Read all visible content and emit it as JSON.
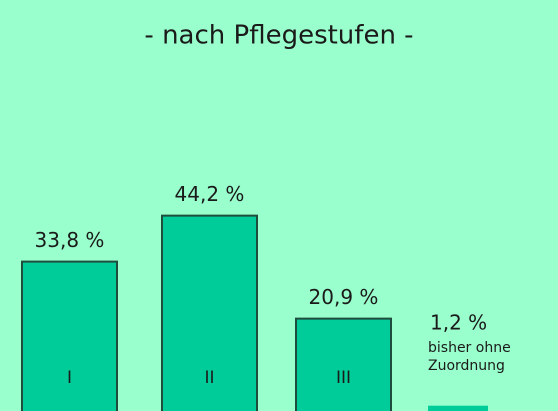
{
  "chart_data": {
    "type": "bar",
    "title": "- nach Pflegestufen -",
    "categories": [
      "I",
      "II",
      "III",
      "bisher ohne Zuordnung"
    ],
    "values": [
      33.8,
      44.2,
      20.9,
      1.2
    ],
    "value_labels": [
      "33,8 %",
      "44,2 %",
      "20,9 %",
      "1,2 %"
    ],
    "color": "#00cc99",
    "ylim": [
      0,
      50
    ]
  }
}
